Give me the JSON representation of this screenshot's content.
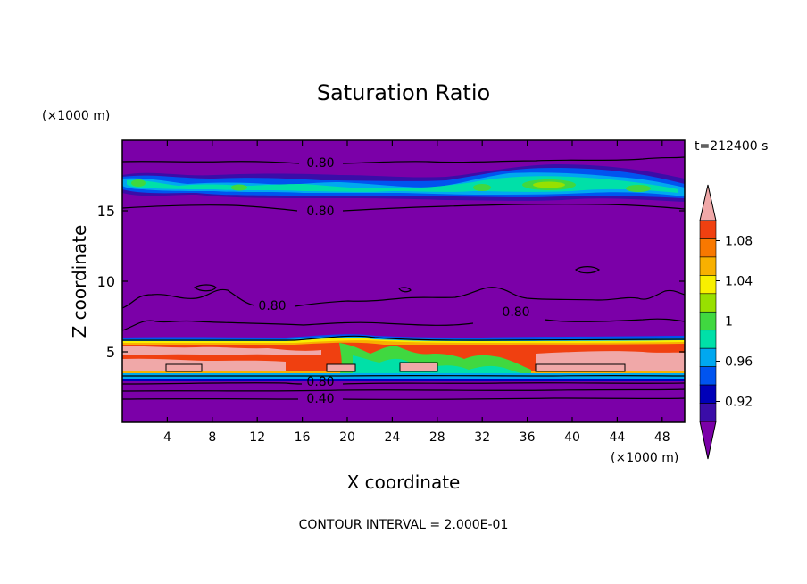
{
  "chart_data": {
    "type": "heatmap",
    "title": "Saturation Ratio",
    "xlabel": "X coordinate",
    "ylabel": "Z coordinate",
    "x_unit": "(×1000 m)",
    "y_unit": "(×1000 m)",
    "time_label": "t=212400 s",
    "footer": "CONTOUR INTERVAL = 2.000E-01",
    "xlim": [
      0,
      50
    ],
    "ylim": [
      0,
      20
    ],
    "x_ticks": [
      "4",
      "8",
      "12",
      "16",
      "20",
      "24",
      "28",
      "32",
      "36",
      "40",
      "44",
      "48"
    ],
    "y_ticks": [
      "5",
      "10",
      "15"
    ],
    "colorbar": {
      "labels": [
        "0.92",
        "0.96",
        "1",
        "1.04",
        "1.08"
      ],
      "levels": [
        0.9,
        0.92,
        0.94,
        0.96,
        0.98,
        1.0,
        1.02,
        1.04,
        1.06,
        1.08,
        1.1
      ],
      "colors": [
        "#7B00A8",
        "#3A0DA8",
        "#0000B8",
        "#0054F0",
        "#00A8F0",
        "#00E0A8",
        "#40D840",
        "#98E000",
        "#F8F000",
        "#F8B000",
        "#F87800",
        "#F04010",
        "#F0A8A8"
      ]
    },
    "contour_labels": [
      "0.80",
      "0.80",
      "0.80",
      "0.80",
      "0.80",
      "0.40"
    ],
    "features": [
      {
        "name": "upper moist band",
        "z_range": [
          16,
          17.5
        ],
        "level_max": 1.03
      },
      {
        "name": "lower supersaturated layer",
        "z_range": [
          3.2,
          5.9
        ],
        "level_max": 1.1
      }
    ]
  }
}
